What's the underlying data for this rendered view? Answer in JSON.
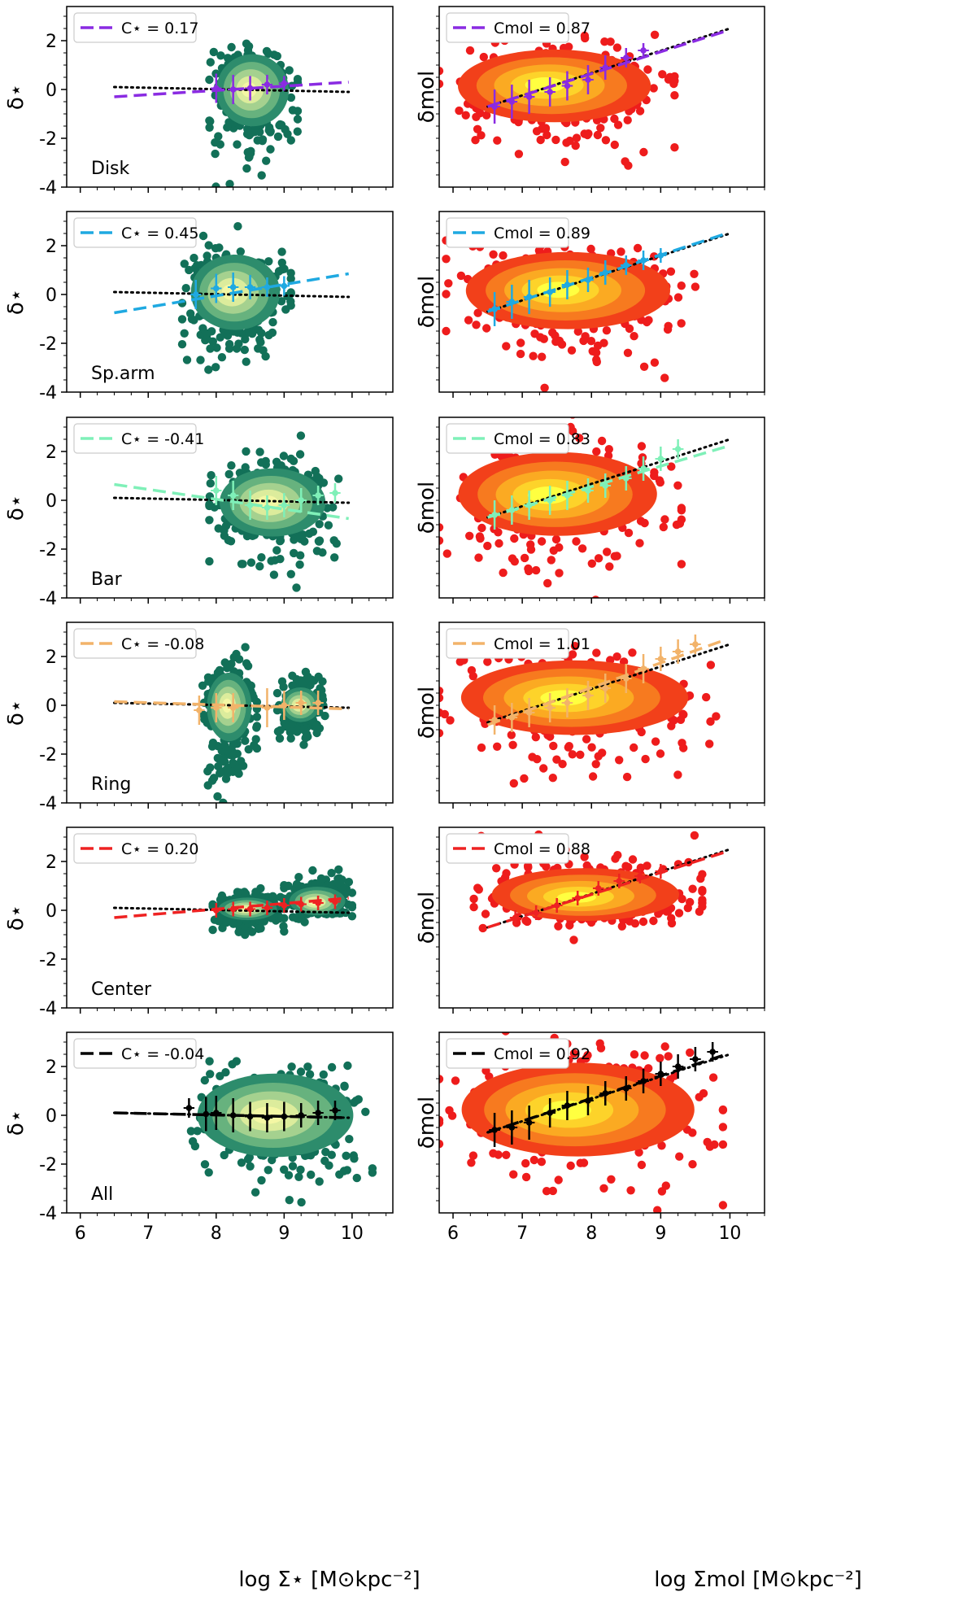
{
  "chart_data": {
    "type": "scatter",
    "title": "",
    "left_column": {
      "ylabel": "δ⋆",
      "xlabel": "log Σ⋆ [M⊙kpc⁻²]",
      "xlim": [
        5.8,
        10.6
      ],
      "ylim": [
        -4,
        3.4
      ],
      "xticks": [
        6,
        7,
        8,
        9,
        10
      ],
      "yticks": [
        -4,
        -2,
        0,
        2
      ],
      "reference_line": {
        "style": "dotted",
        "color": "#000000",
        "x": [
          6.5,
          9.95
        ],
        "y": [
          0.1,
          -0.1
        ]
      }
    },
    "right_column": {
      "ylabel": "δmol",
      "xlabel": "log Σmol [M⊙kpc⁻²]",
      "xlim": [
        5.8,
        10.5
      ],
      "ylim": [
        -4,
        3.4
      ],
      "xticks": [
        6,
        7,
        8,
        9,
        10
      ],
      "yticks": [],
      "reference_line": {
        "style": "dotted",
        "color": "#000000",
        "x": [
          6.5,
          10.0
        ],
        "y": [
          -0.7,
          2.5
        ]
      }
    },
    "panels": [
      {
        "region": "Disk",
        "color": "#8a2be2",
        "left": {
          "legend": "C⋆ = 0.17",
          "fit": {
            "x": [
              6.5,
              9.95
            ],
            "y": [
              -0.3,
              0.3
            ]
          },
          "bins": {
            "x": [
              8.0,
              8.25,
              8.5,
              8.75,
              9.0
            ],
            "y": [
              0.05,
              0.0,
              0.05,
              0.2,
              0.25
            ],
            "err": [
              0.6,
              0.6,
              0.5,
              0.4,
              0.3
            ]
          },
          "cloud": {
            "xmin": 7.9,
            "xmax": 9.2,
            "ymid": 0.0,
            "ylow": -3.5,
            "yhigh": 2.1
          }
        },
        "right": {
          "legend": "Cmol = 0.87",
          "fit": {
            "x": [
              6.5,
              9.95
            ],
            "y": [
              -0.7,
              2.4
            ]
          },
          "bins": {
            "x": [
              6.6,
              6.85,
              7.1,
              7.4,
              7.65,
              7.95,
              8.2,
              8.5,
              8.75
            ],
            "y": [
              -0.7,
              -0.5,
              -0.3,
              -0.1,
              0.15,
              0.4,
              0.9,
              1.3,
              1.6
            ],
            "err": [
              0.7,
              0.7,
              0.7,
              0.6,
              0.6,
              0.6,
              0.5,
              0.4,
              0.3
            ]
          },
          "cloud": {
            "xmin": 5.8,
            "xmax": 9.2,
            "ymid": 0.2,
            "ylow": -3.5,
            "yhigh": 2.2
          }
        }
      },
      {
        "region": "Sp.arm",
        "color": "#1fa9e1",
        "left": {
          "legend": "C⋆ = 0.45",
          "fit": {
            "x": [
              6.5,
              9.95
            ],
            "y": [
              -0.75,
              0.85
            ]
          },
          "bins": {
            "x": [
              7.7,
              8.0,
              8.25,
              8.5,
              8.75,
              9.0
            ],
            "y": [
              0.0,
              0.25,
              0.3,
              0.3,
              0.3,
              0.35
            ],
            "err": [
              0.6,
              0.6,
              0.6,
              0.5,
              0.4,
              0.4
            ]
          },
          "cloud": {
            "xmin": 7.5,
            "xmax": 9.1,
            "ymid": 0.1,
            "ylow": -3.4,
            "yhigh": 2.4
          }
        },
        "right": {
          "legend": "Cmol = 0.89",
          "fit": {
            "x": [
              6.5,
              9.95
            ],
            "y": [
              -0.7,
              2.5
            ]
          },
          "bins": {
            "x": [
              6.6,
              6.85,
              7.1,
              7.4,
              7.65,
              7.95,
              8.2,
              8.5,
              8.75,
              9.0
            ],
            "y": [
              -0.6,
              -0.3,
              -0.1,
              0.1,
              0.4,
              0.6,
              0.9,
              1.2,
              1.4,
              1.6
            ],
            "err": [
              0.7,
              0.7,
              0.7,
              0.6,
              0.6,
              0.5,
              0.5,
              0.4,
              0.4,
              0.3
            ]
          },
          "cloud": {
            "xmin": 5.9,
            "xmax": 9.5,
            "ymid": 0.2,
            "ylow": -3.6,
            "yhigh": 2.4
          }
        }
      },
      {
        "region": "Bar",
        "color": "#7ff0b8",
        "left": {
          "legend": "C⋆ = -0.41",
          "fit": {
            "x": [
              6.5,
              9.95
            ],
            "y": [
              0.65,
              -0.75
            ]
          },
          "bins": {
            "x": [
              8.0,
              8.25,
              8.5,
              8.75,
              9.0,
              9.25,
              9.5,
              9.75
            ],
            "y": [
              0.4,
              0.2,
              -0.2,
              -0.3,
              -0.2,
              0.0,
              0.2,
              0.3
            ],
            "err": [
              0.6,
              0.6,
              0.6,
              0.5,
              0.5,
              0.5,
              0.4,
              0.4
            ]
          },
          "cloud": {
            "xmin": 7.9,
            "xmax": 9.8,
            "ymid": -0.1,
            "ylow": -3.1,
            "yhigh": 2.1
          }
        },
        "right": {
          "legend": "Cmol = 0.83",
          "fit": {
            "x": [
              6.5,
              9.95
            ],
            "y": [
              -0.7,
              2.2
            ]
          },
          "bins": {
            "x": [
              6.6,
              6.85,
              7.1,
              7.4,
              7.65,
              7.95,
              8.2,
              8.5,
              8.75,
              9.0,
              9.25
            ],
            "y": [
              -0.6,
              -0.4,
              -0.2,
              0.0,
              0.2,
              0.4,
              0.6,
              0.9,
              1.3,
              1.7,
              2.1
            ],
            "err": [
              0.6,
              0.6,
              0.6,
              0.6,
              0.6,
              0.5,
              0.5,
              0.5,
              0.5,
              0.5,
              0.4
            ]
          },
          "cloud": {
            "xmin": 5.8,
            "xmax": 9.3,
            "ymid": 0.2,
            "ylow": -3.2,
            "yhigh": 3.1
          }
        }
      },
      {
        "region": "Ring",
        "color": "#f2b36a",
        "left": {
          "legend": "C⋆ = -0.08",
          "fit": {
            "x": [
              6.5,
              9.95
            ],
            "y": [
              0.15,
              -0.15
            ]
          },
          "bins": {
            "x": [
              7.75,
              8.0,
              8.25,
              8.75,
              9.0,
              9.25,
              9.5
            ],
            "y": [
              -0.2,
              -0.1,
              -0.1,
              -0.1,
              0.0,
              0.1,
              0.1
            ],
            "err": [
              0.6,
              0.6,
              0.6,
              0.8,
              0.6,
              0.5,
              0.5
            ]
          },
          "cloud": {
            "xmin": 7.8,
            "xmax": 8.6,
            "ymid": 0.0,
            "ylow": -3.6,
            "yhigh": 1.8
          },
          "cloud2": {
            "xmin": 8.9,
            "xmax": 9.6,
            "ymid": 0.0,
            "ylow": -1.4,
            "yhigh": 1.2
          }
        },
        "right": {
          "legend": "Cmol = 1.01",
          "fit": {
            "x": [
              6.5,
              9.95
            ],
            "y": [
              -0.8,
              2.7
            ]
          },
          "bins": {
            "x": [
              6.6,
              6.85,
              7.1,
              7.4,
              7.65,
              7.95,
              8.2,
              8.5,
              8.75,
              9.0,
              9.25,
              9.5
            ],
            "y": [
              -0.6,
              -0.5,
              -0.3,
              -0.1,
              0.1,
              0.4,
              0.7,
              1.1,
              1.5,
              1.9,
              2.2,
              2.5
            ],
            "err": [
              0.6,
              0.6,
              0.6,
              0.6,
              0.6,
              0.6,
              0.6,
              0.6,
              0.6,
              0.5,
              0.5,
              0.4
            ]
          },
          "cloud": {
            "xmin": 5.8,
            "xmax": 9.8,
            "ymid": 0.3,
            "ylow": -3.0,
            "yhigh": 2.7
          }
        }
      },
      {
        "region": "Center",
        "color": "#ee2222",
        "left": {
          "legend": "C⋆ = 0.20",
          "fit": {
            "x": [
              6.5,
              9.95
            ],
            "y": [
              -0.3,
              0.5
            ]
          },
          "bins": {
            "x": [
              8.0,
              8.25,
              8.5,
              8.75,
              9.0,
              9.25,
              9.5,
              9.75
            ],
            "y": [
              0.0,
              0.05,
              0.05,
              0.1,
              0.2,
              0.25,
              0.3,
              0.35
            ],
            "err": [
              0.3,
              0.3,
              0.3,
              0.3,
              0.3,
              0.3,
              0.3,
              0.3
            ]
          },
          "cloud": {
            "xmin": 7.95,
            "xmax": 9.0,
            "ymid": 0.05,
            "ylow": -0.9,
            "yhigh": 0.8
          },
          "cloud2": {
            "xmin": 9.0,
            "xmax": 10.0,
            "ymid": 0.3,
            "ylow": -0.4,
            "yhigh": 1.6
          }
        },
        "right": {
          "legend": "Cmol = 0.88",
          "fit": {
            "x": [
              6.5,
              9.95
            ],
            "y": [
              -0.7,
              2.4
            ]
          },
          "bins": {
            "x": [
              6.9,
              7.2,
              7.5,
              7.8,
              8.1,
              8.4,
              8.7,
              9.0
            ],
            "y": [
              -0.3,
              -0.1,
              0.2,
              0.5,
              0.9,
              1.2,
              1.4,
              1.6
            ],
            "err": [
              0.3,
              0.3,
              0.3,
              0.3,
              0.3,
              0.3,
              0.3,
              0.3
            ]
          },
          "cloud": {
            "xmin": 6.3,
            "xmax": 9.6,
            "ymid": 0.5,
            "ylow": -0.8,
            "yhigh": 2.9
          }
        }
      },
      {
        "region": "All",
        "color": "#000000",
        "left": {
          "legend": "C⋆ = -0.04",
          "fit": {
            "x": [
              6.5,
              9.95
            ],
            "y": [
              0.1,
              -0.1
            ]
          },
          "bins": {
            "x": [
              7.6,
              7.85,
              8.0,
              8.25,
              8.5,
              8.75,
              9.0,
              9.25,
              9.5,
              9.75
            ],
            "y": [
              0.3,
              0.05,
              0.1,
              0.0,
              -0.05,
              -0.1,
              -0.05,
              0.0,
              0.1,
              0.2
            ],
            "err": [
              0.4,
              0.7,
              0.7,
              0.7,
              0.6,
              0.6,
              0.6,
              0.5,
              0.5,
              0.4
            ]
          },
          "cloud": {
            "xmin": 7.5,
            "xmax": 10.3,
            "ymid": 0.0,
            "ylow": -3.8,
            "yhigh": 2.6
          }
        },
        "right": {
          "legend": "Cmol = 0.92",
          "fit": {
            "x": [
              6.5,
              9.95
            ],
            "y": [
              -0.7,
              2.5
            ]
          },
          "bins": {
            "x": [
              6.6,
              6.85,
              7.1,
              7.4,
              7.65,
              7.95,
              8.2,
              8.5,
              8.75,
              9.0,
              9.25,
              9.5,
              9.75
            ],
            "y": [
              -0.6,
              -0.5,
              -0.3,
              0.1,
              0.4,
              0.6,
              0.9,
              1.1,
              1.4,
              1.7,
              2.0,
              2.3,
              2.6
            ],
            "err": [
              0.7,
              0.7,
              0.7,
              0.6,
              0.6,
              0.6,
              0.5,
              0.5,
              0.5,
              0.5,
              0.5,
              0.5,
              0.4
            ]
          },
          "cloud": {
            "xmin": 5.8,
            "xmax": 9.9,
            "ymid": 0.2,
            "ylow": -3.8,
            "yhigh": 3.3
          }
        }
      }
    ]
  }
}
